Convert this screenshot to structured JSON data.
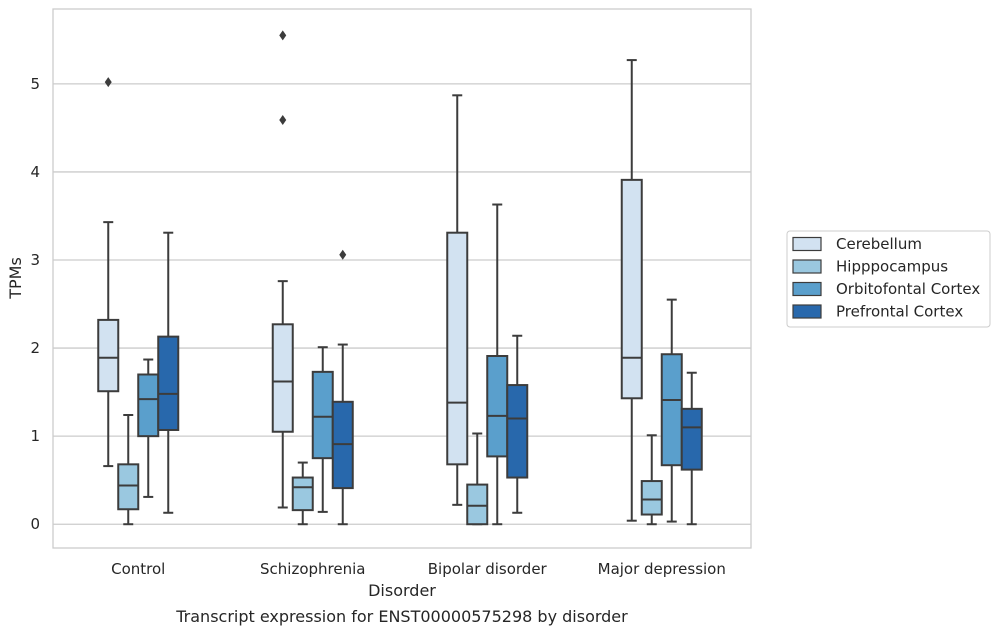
{
  "caption": "Transcript expression for ENST00000575298 by disorder",
  "chart_data": {
    "type": "box",
    "xlabel": "Disorder",
    "ylabel": "TPMs",
    "ylim": [
      -0.27,
      5.85
    ],
    "yticks": [
      0,
      1,
      2,
      3,
      4,
      5
    ],
    "grid": "horizontal",
    "legend_position": "right",
    "categories": [
      "Control",
      "Schizophrenia",
      "Bipolar disorder",
      "Major depression"
    ],
    "series": [
      {
        "name": "Cerebellum",
        "color": "#d2e2f1",
        "boxes": [
          {
            "whisker_low": 0.66,
            "q1": 1.51,
            "median": 1.89,
            "q3": 2.32,
            "whisker_high": 3.43,
            "outliers": [
              5.02
            ]
          },
          {
            "whisker_low": 0.19,
            "q1": 1.05,
            "median": 1.62,
            "q3": 2.27,
            "whisker_high": 2.76,
            "outliers": [
              5.55,
              4.59
            ]
          },
          {
            "whisker_low": 0.22,
            "q1": 0.68,
            "median": 1.38,
            "q3": 3.31,
            "whisker_high": 4.87,
            "outliers": []
          },
          {
            "whisker_low": 0.04,
            "q1": 1.43,
            "median": 1.89,
            "q3": 3.91,
            "whisker_high": 5.27,
            "outliers": []
          }
        ]
      },
      {
        "name": "Hipppocampus",
        "color": "#9ac8e0",
        "boxes": [
          {
            "whisker_low": 0.0,
            "q1": 0.17,
            "median": 0.44,
            "q3": 0.68,
            "whisker_high": 1.24,
            "outliers": []
          },
          {
            "whisker_low": 0.0,
            "q1": 0.16,
            "median": 0.42,
            "q3": 0.53,
            "whisker_high": 0.7,
            "outliers": []
          },
          {
            "whisker_low": 0.0,
            "q1": 0.0,
            "median": 0.21,
            "q3": 0.45,
            "whisker_high": 1.03,
            "outliers": []
          },
          {
            "whisker_low": 0.0,
            "q1": 0.11,
            "median": 0.28,
            "q3": 0.49,
            "whisker_high": 1.01,
            "outliers": []
          }
        ]
      },
      {
        "name": "Orbitofontal Cortex",
        "color": "#5a9fcc",
        "boxes": [
          {
            "whisker_low": 0.31,
            "q1": 1.0,
            "median": 1.42,
            "q3": 1.7,
            "whisker_high": 1.87,
            "outliers": []
          },
          {
            "whisker_low": 0.14,
            "q1": 0.75,
            "median": 1.22,
            "q3": 1.73,
            "whisker_high": 2.01,
            "outliers": []
          },
          {
            "whisker_low": 0.0,
            "q1": 0.77,
            "median": 1.23,
            "q3": 1.91,
            "whisker_high": 3.63,
            "outliers": []
          },
          {
            "whisker_low": 0.03,
            "q1": 0.67,
            "median": 1.41,
            "q3": 1.93,
            "whisker_high": 2.55,
            "outliers": []
          }
        ]
      },
      {
        "name": "Prefrontal Cortex",
        "color": "#2868ac",
        "boxes": [
          {
            "whisker_low": 0.13,
            "q1": 1.07,
            "median": 1.48,
            "q3": 2.13,
            "whisker_high": 3.31,
            "outliers": []
          },
          {
            "whisker_low": 0.0,
            "q1": 0.41,
            "median": 0.91,
            "q3": 1.39,
            "whisker_high": 2.04,
            "outliers": [
              3.06
            ]
          },
          {
            "whisker_low": 0.13,
            "q1": 0.53,
            "median": 1.2,
            "q3": 1.58,
            "whisker_high": 2.14,
            "outliers": []
          },
          {
            "whisker_low": 0.0,
            "q1": 0.62,
            "median": 1.1,
            "q3": 1.31,
            "whisker_high": 1.72,
            "outliers": []
          }
        ]
      }
    ]
  }
}
